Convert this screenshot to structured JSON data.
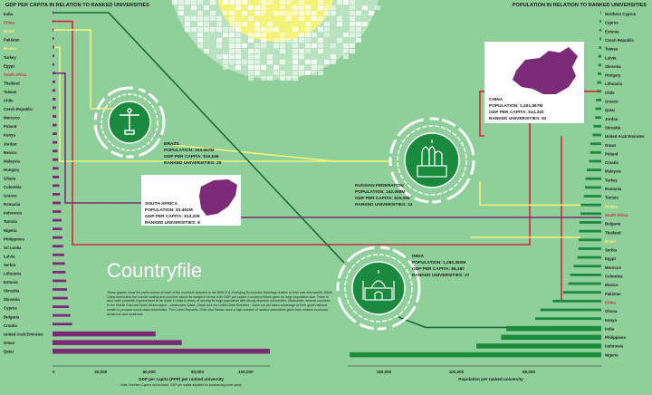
{
  "header": {
    "left_title": "GDP PER CAPITA IN RELATION TO RANKED UNIVERSITIES",
    "right_title": "POPULATION IN RELATION TO RANKED UNIVERSITIES"
  },
  "title": "Countryfile",
  "intro": "These graphs show the performance of each of the countries included in the BRICS & Emerging Economies Rankings relative to their size and wealth. While China dominates the overall ranking and punches above its weight in terms of its GDP per capita, it underperforms given its large population size. There is also much potential improvement to be made in India in terms of serving its huge population with strong research universities. Meanwhile, several countries in the Middle East and North Africa region – particularly Qatar, Oman and the United Arab Emirates – have not yet taken advantage of their great national wealth to produce world-class universities. The Czech Republic, Chile and Taiwan have a high number of ranked universities given their relative economic weakness and small size",
  "highlight_labels": [
    "China",
    "Russia",
    "Brazil",
    "South Africa",
    "India"
  ],
  "callouts": {
    "china": {
      "name": "CHINA",
      "population": "POPULATION: 1,401,567M",
      "gdp": "GDP PER CAPITA: $14,340",
      "ranked": "RANKED UNIVERSITIES: 52"
    },
    "brazil": {
      "name": "BRAZIL",
      "population": "POPULATION: 203.657M",
      "gdp": "GDP PER CAPITA: $16,546",
      "ranked": "RANKED UNIVERSITIES: 25"
    },
    "south_africa": {
      "name": "SOUTH AFRICA",
      "population": "POPULATION: 53.491M",
      "gdp": "GDP PER CAPITA: $13,209",
      "ranked": "RANKED UNIVERSITIES: 8"
    },
    "russia": {
      "name": "RUSSIAN FEDERATION",
      "population": "POPULATION: 142.098M",
      "gdp": "GDP PER CAPITA: $25,055",
      "ranked": "RANKED UNIVERSITIES: 24"
    },
    "india": {
      "name": "INDIA",
      "population": "POPULATION: 1,282.390M",
      "gdp": "GDP PER CAPITA: $6,187",
      "ranked": "RANKED UNIVERSITIES: 27"
    }
  },
  "colors": {
    "background": "#8fcf9a",
    "purple": "#7b2b77",
    "green": "#1a8a3e",
    "red": "#d3263a",
    "yellow": "#f3f27a",
    "white": "#ffffff",
    "dark": "#1a1a1a"
  },
  "chart_data": [
    {
      "type": "bar",
      "orientation": "horizontal",
      "title": "GDP PER CAPITA IN RELATION TO RANKED UNIVERSITIES",
      "xlabel": "GDP per capita (PPP) per ranked university",
      "note": "Note: Northern Cyprus not included. GDP per capita adjusted for purchasing power parity",
      "categories": [
        "India",
        "China",
        "Brazil",
        "Pakistan",
        "Russia",
        "Turkey",
        "Egypt",
        "South Africa",
        "Thailand",
        "Taiwan",
        "Chile",
        "Czech Republic",
        "Morocco",
        "Poland",
        "Kenya",
        "Jordan",
        "Mexico",
        "Malaysia",
        "Hungary",
        "Ghana",
        "Colombia",
        "Greece",
        "Romania",
        "Indonesia",
        "Tunisia",
        "Nigeria",
        "Philippines",
        "Sri Lanka",
        "Latvia",
        "Serbia",
        "Lithuania",
        "Estonia",
        "Slovakia",
        "Slovenia",
        "Cyprus",
        "Bulgaria",
        "Croatia",
        "United Arab Emirates",
        "Oman",
        "Qatar"
      ],
      "values": [
        229,
        276,
        662,
        827,
        1044,
        1106,
        1148,
        1651,
        1691,
        1771,
        1879,
        2158,
        2381,
        2515,
        2709,
        2934,
        3159,
        3468,
        3742,
        3965,
        4188,
        4624,
        5044,
        5346,
        5605,
        5889,
        6147,
        6586,
        7204,
        7654,
        8098,
        8536,
        8982,
        9435,
        10186,
        11070,
        12226,
        64020,
        80250,
        135000
      ],
      "xticks": [
        "0",
        "30,000",
        "60,000",
        "90,000",
        "120,000"
      ],
      "xlim": [
        0,
        135000
      ]
    },
    {
      "type": "bar",
      "orientation": "horizontal",
      "title": "POPULATION IN RELATION TO RANKED UNIVERSITIES",
      "xlabel": "Population per ranked university",
      "categories": [
        "Northern Cyprus",
        "Cyprus",
        "Estonia",
        "Czech Republic",
        "Taiwan",
        "Latvia",
        "Slovenia",
        "Hungary",
        "Lithuania",
        "Chile",
        "Greece",
        "Qatar",
        "Jordan",
        "Slovakia",
        "United Arab Emirates",
        "Oman",
        "Poland",
        "Croatia",
        "Malaysia",
        "Turkey",
        "Romania",
        "Tunisia",
        "Russia",
        "South Africa",
        "Bulgaria",
        "Thailand",
        "Brazil",
        "Serbia",
        "Egypt",
        "Morocco",
        "Colombia",
        "Mexico",
        "Pakistan",
        "China",
        "Ghana",
        "Kenya",
        "India",
        "Philippines",
        "Indonesia",
        "Nigeria"
      ],
      "values": [
        300,
        1160,
        1310,
        1180,
        1660,
        2030,
        2070,
        2450,
        2910,
        3000,
        3700,
        4080,
        4290,
        5370,
        6030,
        7570,
        7640,
        8480,
        9990,
        10900,
        11250,
        11950,
        14140,
        14360,
        15110,
        15360,
        15700,
        15960,
        16440,
        19160,
        21480,
        22810,
        26270,
        33570,
        42080,
        45630,
        65570,
        69080,
        86210,
        173630
      ],
      "xticks": [
        "150,000",
        "100,000",
        "50,000"
      ],
      "xlim": [
        0,
        175000
      ]
    }
  ]
}
